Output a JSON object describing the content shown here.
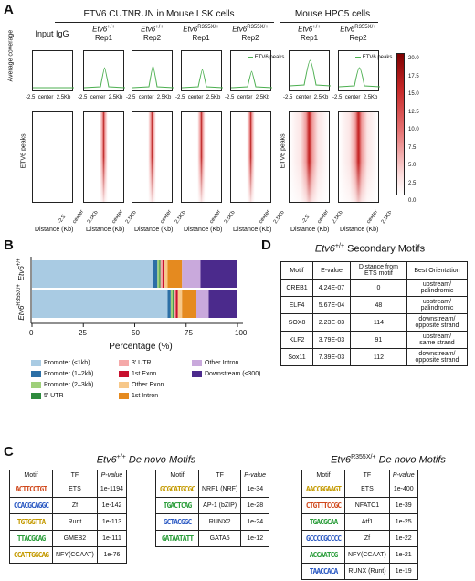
{
  "panelA": {
    "label": "A",
    "lsk_title": "ETV6 CUTNRUN in Mouse LSK cells",
    "hpc5_title": "Mouse HPC5 cells",
    "y_profile": "Average coverage",
    "y_heat": "ETV6 peaks",
    "xlabel": "Distance (Kb)",
    "ticks": [
      "-2.5",
      "center",
      "2.5Kb"
    ],
    "legend_label": "ETV6 peaks",
    "legend_color": "#4caf50",
    "colorbar_ticks": [
      "20.0",
      "17.5",
      "15.0",
      "12.5",
      "10.0",
      "7.5",
      "5.0",
      "2.5",
      "0.0"
    ],
    "columns": [
      {
        "gene": "Etv6",
        "sup": "+/+",
        "rep": "Rep1"
      },
      {
        "gene": "Etv6",
        "sup": "+/+",
        "rep": "Rep2"
      },
      {
        "gene": "Etv6",
        "sup": "R355X/+",
        "rep": "Rep1"
      },
      {
        "gene": "Etv6",
        "sup": "R355X/+",
        "rep": "Rep2"
      }
    ],
    "input_label": "Input IgG",
    "hpc_columns": [
      {
        "gene": "Etv6",
        "sup": "+/+",
        "rep": "Rep1"
      },
      {
        "gene": "Etv6",
        "sup": "R355X/+",
        "rep": "Rep2"
      }
    ]
  },
  "panelB": {
    "label": "B",
    "xlabel": "Percentage (%)",
    "xticks": [
      "0",
      "25",
      "50",
      "75",
      "100"
    ],
    "rows": [
      {
        "gene": "Etv6",
        "sup": "+/+"
      },
      {
        "gene": "Etv6",
        "sup": "R355X/+"
      }
    ],
    "legend": [
      {
        "label": "Promoter (≤1kb)",
        "color": "#a9cbe3"
      },
      {
        "label": "Promoter (1–2kb)",
        "color": "#2c6fa6"
      },
      {
        "label": "Promoter (2–3kb)",
        "color": "#9fd07a"
      },
      {
        "label": "5' UTR",
        "color": "#2e8b3d"
      },
      {
        "label": "3' UTR",
        "color": "#f5a9a9"
      },
      {
        "label": "1st Exon",
        "color": "#c8102e"
      },
      {
        "label": "Other Exon",
        "color": "#f7c88a"
      },
      {
        "label": "1st Intron",
        "color": "#e58a1f"
      },
      {
        "label": "Other Intron",
        "color": "#c9a9dc"
      },
      {
        "label": "Downstream (≤300)",
        "color": "#4b2a8c"
      }
    ],
    "chart_data": {
      "type": "bar",
      "orientation": "horizontal",
      "stacked": true,
      "categories": [
        "Etv6 +/+",
        "Etv6 R355X/+"
      ],
      "xlim": [
        0,
        100
      ],
      "series": [
        {
          "name": "Promoter (≤1kb)",
          "values": [
            59,
            66
          ]
        },
        {
          "name": "Promoter (1–2kb)",
          "values": [
            2,
            1.5
          ]
        },
        {
          "name": "Promoter (2–3kb)",
          "values": [
            1,
            1
          ]
        },
        {
          "name": "5' UTR",
          "values": [
            0.5,
            0.5
          ]
        },
        {
          "name": "3' UTR",
          "values": [
            1,
            1
          ]
        },
        {
          "name": "1st Exon",
          "values": [
            1,
            1
          ]
        },
        {
          "name": "Other Exon",
          "values": [
            1.5,
            2
          ]
        },
        {
          "name": "1st Intron",
          "values": [
            7,
            7
          ]
        },
        {
          "name": "Other Intron",
          "values": [
            9,
            6
          ]
        },
        {
          "name": "Downstream (≤300)",
          "values": [
            18,
            14
          ]
        }
      ]
    }
  },
  "panelC": {
    "label": "C",
    "wt_title_gene": "Etv6",
    "wt_title_sup": "+/+",
    "wt_title_rest": " De novo Motifs",
    "mut_title_gene": "Etv6",
    "mut_title_sup": "R355X/+",
    "mut_title_rest": " De novo Motifs",
    "headers": [
      "Motif",
      "TF",
      "P-value"
    ],
    "wt_left": [
      {
        "logo": "ACTTCCTGT",
        "tf": "ETS",
        "p": "1e-1194"
      },
      {
        "logo": "CCACGCAGGC",
        "tf": "Zf",
        "p": "1e-142"
      },
      {
        "logo": "TGTGGTTA",
        "tf": "Runt",
        "p": "1e-113"
      },
      {
        "logo": "TTACGCAG",
        "tf": "GMEB2",
        "p": "1e-111"
      },
      {
        "logo": "CCATTGGCAG",
        "tf": "NFY(CCAAT)",
        "p": "1e-76"
      }
    ],
    "wt_right": [
      {
        "logo": "GCGCATGCGC",
        "tf": "NRF1 (NRF)",
        "p": "1e-34"
      },
      {
        "logo": "TGACTCAG",
        "tf": "AP-1 (bZIP)",
        "p": "1e-28"
      },
      {
        "logo": "GCTACGGC",
        "tf": "RUNX2",
        "p": "1e-24"
      },
      {
        "logo": "GATAATATT",
        "tf": "GATA5",
        "p": "1e-12"
      }
    ],
    "mut": [
      {
        "logo": "AACCGGAAGT",
        "tf": "ETS",
        "p": "1e-400"
      },
      {
        "logo": "CTGTTTCCGC",
        "tf": "NFATC1",
        "p": "1e-39"
      },
      {
        "logo": "TGACGCAA",
        "tf": "Atf1",
        "p": "1e-25"
      },
      {
        "logo": "GCCCCGCCCC",
        "tf": "Zf",
        "p": "1e-22"
      },
      {
        "logo": "ACCAATCG",
        "tf": "NFY(CCAAT)",
        "p": "1e-21"
      },
      {
        "logo": "TAACCACA",
        "tf": "RUNX (Runt)",
        "p": "1e-19"
      }
    ]
  },
  "panelD": {
    "label": "D",
    "title_gene": "Etv6",
    "title_sup": "+/+",
    "title_rest": " Secondary Motifs",
    "headers": [
      "Motif",
      "E-value",
      "Distance from ETS motif",
      "Best Orientation"
    ],
    "rows": [
      {
        "motif": "CREB1",
        "e": "4.24E-07",
        "d": "0",
        "o1": "upstream/",
        "o2": "palindromic"
      },
      {
        "motif": "ELF4",
        "e": "5.67E-04",
        "d": "48",
        "o1": "upstream/",
        "o2": "palindromic"
      },
      {
        "motif": "SOX8",
        "e": "2.23E-03",
        "d": "114",
        "o1": "downstream/",
        "o2": "opposite strand"
      },
      {
        "motif": "KLF2",
        "e": "3.79E-03",
        "d": "91",
        "o1": "upstream/",
        "o2": "same strand"
      },
      {
        "motif": "Sox11",
        "e": "7.39E-03",
        "d": "112",
        "o1": "downstream/",
        "o2": "opposite strand"
      }
    ]
  }
}
